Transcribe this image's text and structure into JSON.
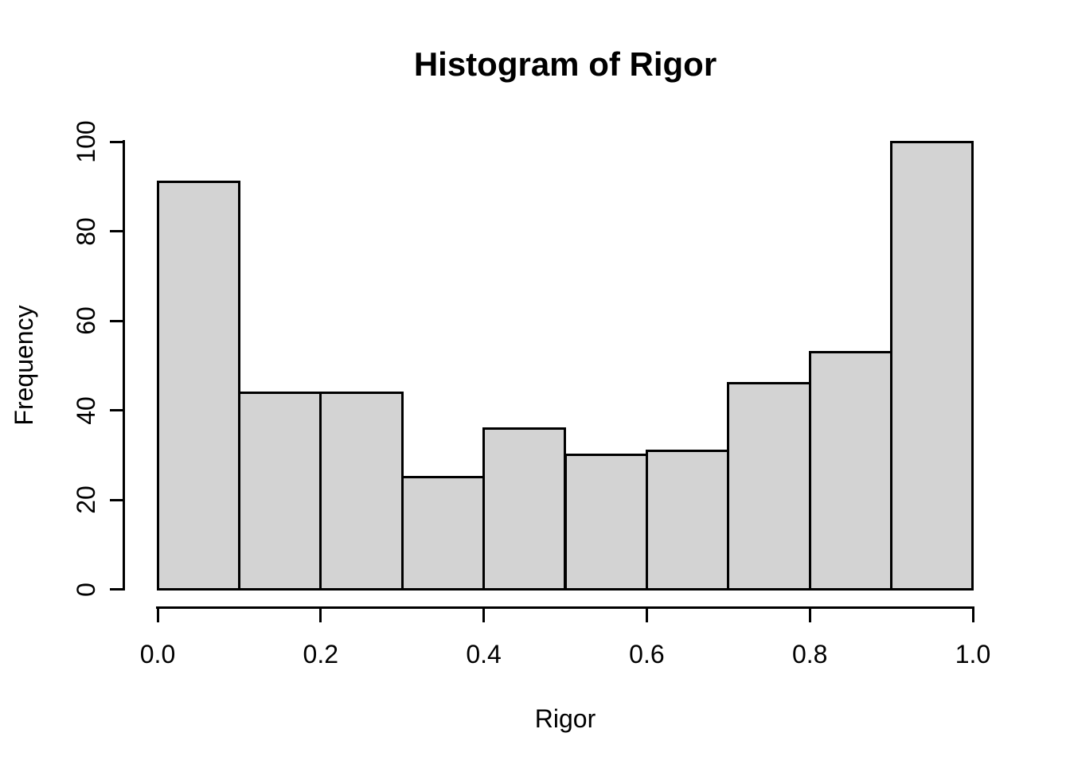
{
  "chart_data": {
    "type": "bar",
    "subtype": "histogram",
    "title": "Histogram of Rigor",
    "xlabel": "Rigor",
    "ylabel": "Frequency",
    "bin_edges": [
      0.0,
      0.1,
      0.2,
      0.3,
      0.4,
      0.5,
      0.6,
      0.7,
      0.8,
      0.9,
      1.0
    ],
    "values": [
      91,
      44,
      44,
      25,
      36,
      30,
      31,
      46,
      53,
      100
    ],
    "xlim": [
      0.0,
      1.0
    ],
    "ylim": [
      0,
      100
    ],
    "x_ticks": [
      {
        "value": 0.0,
        "label": "0.0"
      },
      {
        "value": 0.2,
        "label": "0.2"
      },
      {
        "value": 0.4,
        "label": "0.4"
      },
      {
        "value": 0.6,
        "label": "0.6"
      },
      {
        "value": 0.8,
        "label": "0.8"
      },
      {
        "value": 1.0,
        "label": "1.0"
      }
    ],
    "y_ticks": [
      {
        "value": 0,
        "label": "0"
      },
      {
        "value": 20,
        "label": "20"
      },
      {
        "value": 40,
        "label": "40"
      },
      {
        "value": 60,
        "label": "60"
      },
      {
        "value": 80,
        "label": "80"
      },
      {
        "value": 100,
        "label": "100"
      }
    ],
    "grid": false,
    "legend": null,
    "colors": {
      "bar_fill": "#d3d3d3",
      "bar_stroke": "#000000",
      "axis": "#000000",
      "text": "#000000",
      "background": "#ffffff"
    }
  }
}
